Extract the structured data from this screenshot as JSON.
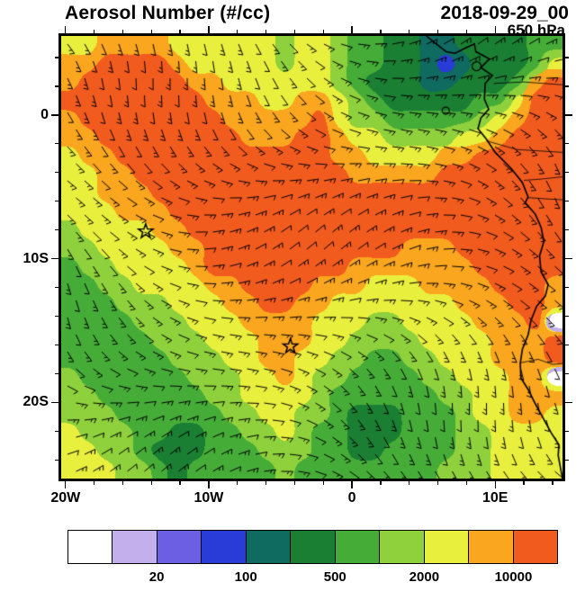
{
  "header": {
    "title": "Aerosol Number (#/cc)",
    "datetime": "2018-09-29_00",
    "level": "650 hPa"
  },
  "chart_data": {
    "type": "heatmap",
    "title": "Aerosol Number (#/cc)",
    "datetime": "2018-09-29_00",
    "level": "650 hPa",
    "units": "#/cc",
    "lon_range": [
      -20.3,
      14.7
    ],
    "lat_range": [
      -25.3,
      5.5
    ],
    "x_ticks": [
      {
        "value": -20,
        "label": "20W"
      },
      {
        "value": -10,
        "label": "10W"
      },
      {
        "value": 0,
        "label": "0"
      },
      {
        "value": 10,
        "label": "10E"
      }
    ],
    "y_ticks": [
      {
        "value": 0,
        "label": "0"
      },
      {
        "value": -10,
        "label": "10S"
      },
      {
        "value": -20,
        "label": "20S"
      }
    ],
    "minor_tick_step": 2,
    "levels": [
      10,
      20,
      50,
      100,
      200,
      500,
      1000,
      2000,
      5000,
      10000
    ],
    "palette": [
      "#FFFFFF",
      "#C3AFEC",
      "#6C5FE3",
      "#2A3CD8",
      "#0F6A60",
      "#1A7F33",
      "#46AC38",
      "#8ED13C",
      "#E9EF3D",
      "#FAA61E",
      "#F25B1E"
    ],
    "grid_note": "values are palette indices; row 0 = north (5.5N), col 0 = west (20.3W)",
    "grid": [
      [
        8,
        8,
        9,
        9,
        9,
        9,
        8,
        8,
        8,
        8,
        8,
        8,
        7,
        8,
        8,
        7,
        6,
        6,
        5,
        5,
        4,
        4,
        5,
        5,
        5,
        5,
        6,
        6
      ],
      [
        9,
        9,
        10,
        10,
        10,
        10,
        9,
        8,
        8,
        8,
        8,
        8,
        7,
        8,
        8,
        7,
        6,
        6,
        5,
        5,
        4,
        3,
        4,
        5,
        5,
        5,
        6,
        8
      ],
      [
        9,
        10,
        10,
        10,
        10,
        10,
        10,
        9,
        9,
        8,
        8,
        8,
        8,
        8,
        8,
        7,
        6,
        5,
        5,
        5,
        4,
        4,
        5,
        5,
        5,
        6,
        9,
        10
      ],
      [
        10,
        10,
        10,
        10,
        10,
        10,
        10,
        10,
        9,
        9,
        9,
        8,
        8,
        9,
        9,
        8,
        7,
        6,
        5,
        5,
        5,
        5,
        5,
        6,
        6,
        8,
        10,
        10
      ],
      [
        9,
        10,
        10,
        10,
        10,
        10,
        10,
        10,
        10,
        9,
        9,
        9,
        9,
        9,
        10,
        8,
        7,
        7,
        6,
        6,
        6,
        6,
        6,
        7,
        8,
        9,
        10,
        10
      ],
      [
        9,
        9,
        10,
        10,
        10,
        10,
        10,
        10,
        10,
        10,
        9,
        9,
        9,
        10,
        10,
        9,
        8,
        8,
        7,
        7,
        7,
        7,
        8,
        8,
        9,
        10,
        10,
        10
      ],
      [
        8,
        9,
        9,
        10,
        10,
        10,
        10,
        10,
        10,
        10,
        10,
        10,
        10,
        10,
        10,
        9,
        9,
        8,
        8,
        8,
        8,
        9,
        9,
        10,
        10,
        10,
        10,
        10
      ],
      [
        8,
        8,
        9,
        9,
        10,
        10,
        10,
        10,
        10,
        10,
        10,
        10,
        10,
        10,
        10,
        10,
        9,
        9,
        9,
        9,
        9,
        10,
        10,
        10,
        10,
        10,
        10,
        10
      ],
      [
        8,
        8,
        9,
        9,
        9,
        10,
        10,
        10,
        10,
        10,
        10,
        10,
        10,
        10,
        10,
        10,
        10,
        10,
        10,
        10,
        10,
        10,
        10,
        10,
        10,
        10,
        10,
        10
      ],
      [
        8,
        8,
        8,
        9,
        9,
        9,
        10,
        10,
        10,
        10,
        10,
        10,
        10,
        10,
        10,
        10,
        10,
        10,
        10,
        10,
        10,
        10,
        10,
        10,
        10,
        10,
        10,
        10
      ],
      [
        7,
        8,
        8,
        8,
        8,
        9,
        9,
        10,
        10,
        10,
        10,
        10,
        10,
        10,
        10,
        10,
        10,
        10,
        10,
        10,
        10,
        10,
        10,
        10,
        10,
        10,
        10,
        10
      ],
      [
        7,
        7,
        8,
        8,
        8,
        8,
        9,
        9,
        10,
        10,
        10,
        10,
        10,
        10,
        10,
        10,
        10,
        10,
        10,
        9,
        9,
        9,
        10,
        10,
        10,
        10,
        10,
        10
      ],
      [
        6,
        7,
        7,
        8,
        8,
        8,
        8,
        9,
        10,
        10,
        10,
        10,
        10,
        10,
        10,
        10,
        9,
        9,
        9,
        9,
        9,
        9,
        9,
        10,
        10,
        10,
        10,
        10
      ],
      [
        6,
        6,
        7,
        7,
        8,
        8,
        8,
        8,
        9,
        9,
        10,
        10,
        10,
        10,
        9,
        9,
        9,
        8,
        8,
        8,
        9,
        9,
        9,
        9,
        10,
        10,
        10,
        9
      ],
      [
        6,
        6,
        6,
        7,
        7,
        7,
        8,
        8,
        8,
        9,
        9,
        10,
        10,
        9,
        9,
        8,
        8,
        8,
        8,
        8,
        8,
        8,
        9,
        9,
        9,
        10,
        10,
        9
      ],
      [
        6,
        6,
        6,
        6,
        7,
        7,
        7,
        8,
        8,
        8,
        9,
        9,
        9,
        9,
        8,
        8,
        8,
        7,
        7,
        8,
        8,
        8,
        8,
        9,
        9,
        9,
        10,
        0
      ],
      [
        6,
        6,
        6,
        6,
        6,
        7,
        7,
        7,
        8,
        8,
        8,
        9,
        9,
        9,
        8,
        8,
        7,
        7,
        7,
        7,
        8,
        8,
        8,
        8,
        9,
        9,
        9,
        10
      ],
      [
        6,
        6,
        6,
        6,
        6,
        6,
        7,
        7,
        7,
        8,
        8,
        9,
        9,
        8,
        8,
        7,
        7,
        6,
        6,
        7,
        7,
        8,
        8,
        8,
        9,
        9,
        9,
        10
      ],
      [
        7,
        6,
        6,
        6,
        6,
        6,
        6,
        7,
        7,
        7,
        8,
        8,
        9,
        8,
        7,
        7,
        6,
        6,
        6,
        6,
        7,
        7,
        8,
        8,
        8,
        9,
        9,
        0
      ],
      [
        7,
        7,
        6,
        6,
        6,
        6,
        6,
        6,
        7,
        7,
        8,
        8,
        8,
        8,
        7,
        6,
        6,
        6,
        6,
        6,
        6,
        7,
        7,
        8,
        8,
        9,
        9,
        9
      ],
      [
        7,
        7,
        7,
        6,
        6,
        6,
        6,
        6,
        6,
        7,
        7,
        8,
        8,
        7,
        7,
        6,
        5,
        5,
        5,
        6,
        6,
        6,
        7,
        8,
        8,
        9,
        9,
        8
      ],
      [
        8,
        7,
        7,
        7,
        6,
        6,
        5,
        5,
        6,
        6,
        7,
        7,
        8,
        7,
        6,
        6,
        5,
        5,
        5,
        6,
        6,
        6,
        7,
        7,
        8,
        8,
        8,
        8
      ],
      [
        8,
        8,
        7,
        7,
        6,
        5,
        5,
        5,
        6,
        6,
        6,
        7,
        7,
        7,
        6,
        6,
        5,
        5,
        6,
        6,
        6,
        6,
        7,
        7,
        8,
        8,
        8,
        8
      ],
      [
        8,
        8,
        8,
        7,
        7,
        6,
        5,
        6,
        6,
        6,
        6,
        6,
        7,
        6,
        6,
        6,
        6,
        6,
        6,
        6,
        6,
        7,
        7,
        7,
        8,
        8,
        8,
        8
      ]
    ],
    "markers": [
      {
        "lon": -14.4,
        "lat": -8.1,
        "symbol": "star"
      },
      {
        "lon": -4.3,
        "lat": -16.1,
        "symbol": "star"
      }
    ],
    "coastline": [
      [
        5.2,
        5.5
      ],
      [
        5.8,
        5.0
      ],
      [
        6.6,
        4.4
      ],
      [
        7.2,
        4.3
      ],
      [
        8.0,
        4.7
      ],
      [
        8.55,
        4.95
      ],
      [
        8.65,
        4.4
      ],
      [
        9.6,
        3.9
      ],
      [
        9.0,
        3.3
      ],
      [
        9.8,
        2.75
      ],
      [
        9.3,
        2.2
      ],
      [
        9.25,
        1.1
      ],
      [
        9.55,
        0.4
      ],
      [
        9.0,
        -0.2
      ],
      [
        8.8,
        -0.95
      ],
      [
        9.4,
        -1.7
      ],
      [
        10.0,
        -2.6
      ],
      [
        11.1,
        -3.7
      ],
      [
        11.9,
        -4.7
      ],
      [
        12.3,
        -5.7
      ],
      [
        12.1,
        -6.1
      ],
      [
        12.8,
        -6.9
      ],
      [
        13.2,
        -7.8
      ],
      [
        13.4,
        -8.8
      ],
      [
        13.1,
        -9.8
      ],
      [
        13.2,
        -10.9
      ],
      [
        13.7,
        -11.8
      ],
      [
        13.5,
        -12.6
      ],
      [
        12.9,
        -13.3
      ],
      [
        12.5,
        -14.3
      ],
      [
        12.3,
        -15.3
      ],
      [
        11.9,
        -16.3
      ],
      [
        11.75,
        -17.3
      ],
      [
        11.8,
        -18.3
      ],
      [
        12.3,
        -19.1
      ],
      [
        12.8,
        -20.1
      ],
      [
        13.3,
        -21.0
      ],
      [
        13.9,
        -22.1
      ],
      [
        14.45,
        -22.95
      ],
      [
        14.4,
        -23.7
      ],
      [
        14.55,
        -24.5
      ],
      [
        14.7,
        -25.3
      ]
    ],
    "islands": [
      {
        "lon": 8.7,
        "lat": 3.4,
        "r": 5
      },
      {
        "lon": 6.55,
        "lat": 0.3,
        "r": 4
      }
    ],
    "borders": [
      [
        [
          9.9,
          2.2
        ],
        [
          12.0,
          2.3
        ],
        [
          14.7,
          2.1
        ]
      ],
      [
        [
          9.4,
          -1.8
        ],
        [
          11.5,
          -2.4
        ],
        [
          14.7,
          -2.6
        ]
      ],
      [
        [
          12.0,
          -4.55
        ],
        [
          13.3,
          -4.45
        ],
        [
          14.7,
          -4.3
        ]
      ],
      [
        [
          12.3,
          -5.75
        ],
        [
          13.8,
          -5.85
        ],
        [
          14.7,
          -5.9
        ]
      ],
      [
        [
          11.75,
          -17.25
        ],
        [
          13.0,
          -17.0
        ],
        [
          14.0,
          -17.35
        ],
        [
          14.7,
          -17.3
        ]
      ]
    ],
    "wind_barbs": {
      "spacing": 19,
      "length": 13,
      "base_dir": 115,
      "var1": 40,
      "var2": 25
    },
    "colorbar_labels": [
      {
        "boundary_index": 2,
        "label": "20"
      },
      {
        "boundary_index": 4,
        "label": "100"
      },
      {
        "boundary_index": 6,
        "label": "500"
      },
      {
        "boundary_index": 8,
        "label": "2000"
      },
      {
        "boundary_index": 10,
        "label": "10000"
      }
    ]
  }
}
